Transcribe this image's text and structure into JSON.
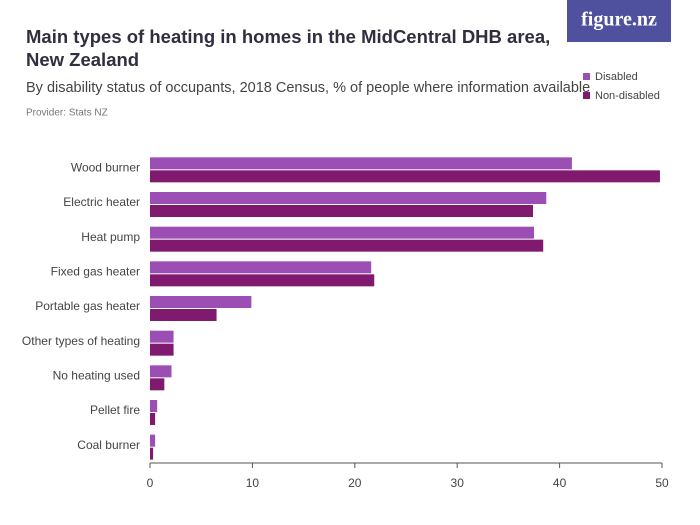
{
  "logo": "figure.nz",
  "chart_data": {
    "type": "barh",
    "title": "Main types of heating in homes in the MidCentral DHB area, New Zealand",
    "subtitle": "By disability status of occupants, 2018 Census, % of people where information available",
    "provider": "Provider: Stats NZ",
    "categories": [
      "Wood burner",
      "Electric heater",
      "Heat pump",
      "Fixed gas heater",
      "Portable gas heater",
      "Other types of heating",
      "No heating used",
      "Pellet fire",
      "Coal burner"
    ],
    "series": [
      {
        "name": "Disabled",
        "color": "#9b4fb5",
        "values": [
          41.2,
          38.7,
          37.5,
          21.6,
          9.9,
          2.3,
          2.1,
          0.7,
          0.5
        ]
      },
      {
        "name": "Non-disabled",
        "color": "#7f1a6e",
        "values": [
          49.8,
          37.4,
          38.4,
          21.9,
          6.5,
          2.3,
          1.4,
          0.5,
          0.3
        ]
      }
    ],
    "xlim": [
      0,
      50
    ],
    "xticks": [
      0,
      10,
      20,
      30,
      40,
      50
    ],
    "legend": "top-right"
  }
}
